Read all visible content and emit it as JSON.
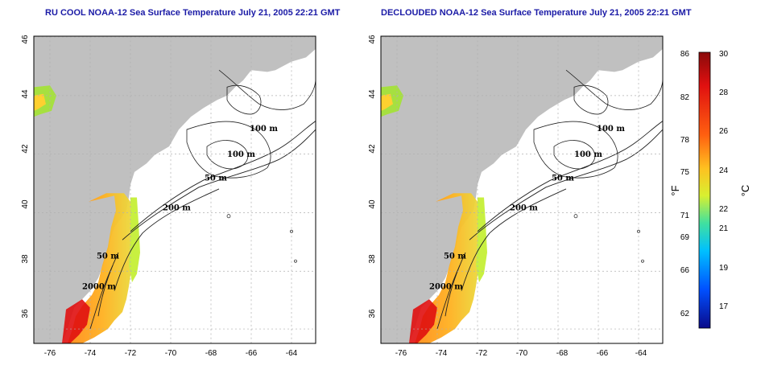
{
  "maps": [
    {
      "id": "left",
      "title": "RU COOL NOAA-12 Sea Surface Temperature July 21, 2005 22:21 GMT",
      "contour_labels": [
        "100 m",
        "100 m",
        "50 m",
        "200 m",
        "50 m",
        "2000 m"
      ]
    },
    {
      "id": "right",
      "title": "DECLOUDED NOAA-12 Sea Surface Temperature July 21, 2005 22:21 GMT",
      "contour_labels": [
        "100 m",
        "100 m",
        "50 m",
        "200 m",
        "50 m",
        "2000 m"
      ]
    }
  ],
  "axes": {
    "x_ticks": [
      "-76",
      "-74",
      "-72",
      "-70",
      "-68",
      "-66",
      "-64"
    ],
    "y_ticks": [
      "36",
      "38",
      "40",
      "42",
      "44",
      "46"
    ]
  },
  "colorbar": {
    "fahrenheit_ticks": [
      "86",
      "82",
      "78",
      "75",
      "71",
      "69",
      "66",
      "62"
    ],
    "celsius_ticks": [
      "30",
      "28",
      "26",
      "24",
      "22",
      "21",
      "19",
      "17"
    ],
    "fahrenheit_unit": "°F",
    "celsius_unit": "°C",
    "colors": [
      "#0a0a8a",
      "#0050ff",
      "#00c0ff",
      "#40e0a0",
      "#d8f030",
      "#ffc020",
      "#ff6010",
      "#e01010",
      "#8a0a0a"
    ]
  }
}
